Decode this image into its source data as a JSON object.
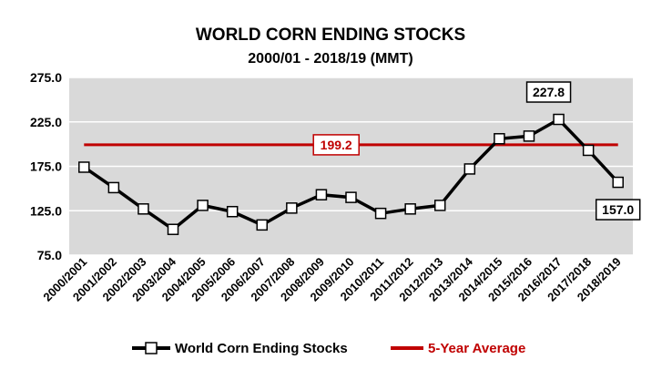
{
  "chart_data": {
    "type": "line",
    "title": "WORLD CORN ENDING STOCKS",
    "subtitle": "2000/01 - 2018/19 (MMT)",
    "xlabel": "",
    "ylabel": "",
    "ylim": [
      75,
      275
    ],
    "yticks": [
      "275.0",
      "225.0",
      "175.0",
      "125.0",
      "75.0"
    ],
    "grid": true,
    "legend_position": "bottom",
    "categories": [
      "2000/2001",
      "2001/2002",
      "2002/2003",
      "2003/2004",
      "2004/2005",
      "2005/2006",
      "2006/2007",
      "2007/2008",
      "2008/2009",
      "2009/2010",
      "2010/2011",
      "2011/2012",
      "2012/2013",
      "2013/2014",
      "2014/2015",
      "2015/2016",
      "2016/2017",
      "2017/2018",
      "2018/2019"
    ],
    "series": [
      {
        "name": "World Corn Ending Stocks",
        "color": "#000000",
        "marker": "square",
        "values": [
          174.0,
          151.0,
          127.0,
          104.0,
          131.0,
          124.0,
          109.0,
          128.0,
          143.0,
          140.0,
          122.0,
          127.0,
          131.0,
          172.0,
          206.0,
          209.0,
          227.8,
          193.0,
          157.0
        ]
      },
      {
        "name": "5-Year Average",
        "color": "#c00000",
        "values": [
          199.2,
          199.2,
          199.2,
          199.2,
          199.2,
          199.2,
          199.2,
          199.2,
          199.2,
          199.2,
          199.2,
          199.2,
          199.2,
          199.2,
          199.2,
          199.2,
          199.2,
          199.2,
          199.2
        ]
      }
    ],
    "annotations": {
      "average_label": "199.2",
      "peak_label": "227.8",
      "last_label": "157.0"
    }
  },
  "colors": {
    "plot_background": "#d9d9d9",
    "gridline": "#ffffff",
    "line": "#000000",
    "average": "#c00000"
  }
}
